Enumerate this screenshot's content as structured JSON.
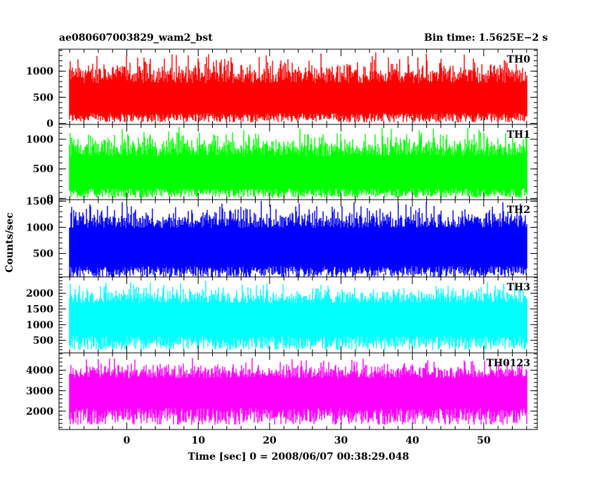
{
  "chart_data": {
    "type": "line",
    "title_left": "ae080607003829_wam2_bst",
    "title_right": "Bin time: 1.5625E−2 s",
    "xlabel": "Time [sec] 0 = 2008/06/07 00:38:29.048",
    "ylabel": "Counts/sec",
    "xlim": [
      -9.5,
      57.5
    ],
    "x_range": [
      -8,
      56
    ],
    "x_ticks": [
      0,
      10,
      20,
      30,
      40,
      50
    ],
    "grid": false,
    "panels": [
      {
        "name": "TH0",
        "color": "#ff0000",
        "ylim": [
          -20,
          1420
        ],
        "y_ticks": [
          0,
          500,
          1000
        ],
        "lo_base": 110,
        "lo_spread": 90,
        "hi_base": 1000,
        "hi_spread": 420
      },
      {
        "name": "TH1",
        "color": "#00ff00",
        "ylim": [
          -20,
          1250
        ],
        "y_ticks": [
          0,
          500,
          1000
        ],
        "lo_base": 90,
        "lo_spread": 80,
        "hi_base": 900,
        "hi_spread": 350
      },
      {
        "name": "TH2",
        "color": "#0000ff",
        "ylim": [
          50,
          1530
        ],
        "y_ticks": [
          500,
          1000,
          1500
        ],
        "lo_base": 150,
        "lo_spread": 110,
        "hi_base": 1180,
        "hi_spread": 350
      },
      {
        "name": "TH3",
        "color": "#00ffff",
        "ylim": [
          100,
          2520
        ],
        "y_ticks": [
          500,
          1000,
          1500,
          2000
        ],
        "lo_base": 420,
        "lo_spread": 230,
        "hi_base": 1950,
        "hi_spread": 500
      },
      {
        "name": "TH0123",
        "color": "#ff00ff",
        "ylim": [
          1100,
          4850
        ],
        "y_ticks": [
          2000,
          3000,
          4000
        ],
        "lo_base": 1750,
        "lo_spread": 420,
        "hi_base": 4000,
        "hi_spread": 700
      }
    ]
  }
}
